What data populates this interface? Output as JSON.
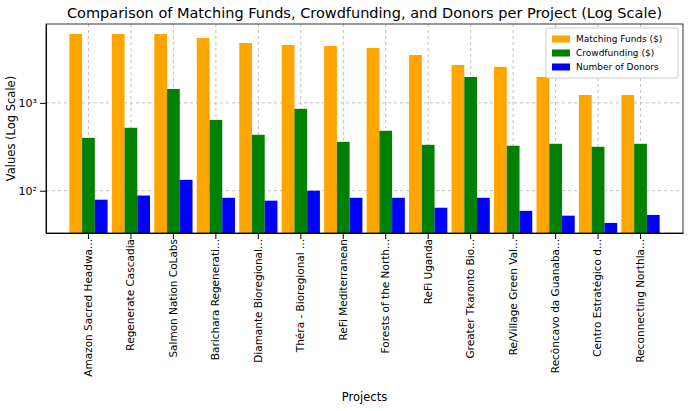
{
  "chart_data": {
    "type": "bar",
    "title": "Comparison of Matching Funds, Crowdfunding, and Donors per Project (Log Scale)",
    "x_label": "Projects",
    "y_label": "Values (Log Scale)",
    "categories": [
      "Amazon Sacred Headwa...",
      "Regenerate Cascadia",
      "Salmon Nation CoLabs",
      "Barichara Regenerati...",
      "Diamante Bioregional...",
      "Théra - Bioregional ...",
      "ReFi Mediterranean",
      "Forests of the North...",
      "ReFi Uganda",
      "Greater Tkaronto Bio...",
      "Re/Village Green Val...",
      "Recôncavo da Guanaba...",
      "Centro Estratégico d...",
      "Reconnecting Northla..."
    ],
    "series": [
      {
        "name": "Matching Funds ($)",
        "color": "#ffa500",
        "values": [
          6080,
          6080,
          6080,
          5480,
          4800,
          4560,
          4440,
          4220,
          3510,
          2700,
          2570,
          1970,
          1230,
          1230
        ]
      },
      {
        "name": "Crowdfunding ($)",
        "color": "#008000",
        "values": [
          400,
          520,
          1440,
          640,
          433,
          855,
          360,
          481,
          333,
          1970,
          325,
          342,
          316,
          342
        ]
      },
      {
        "name": "Number of Donors",
        "color": "#0000ff",
        "values": [
          79,
          88,
          133,
          83,
          77,
          100,
          83,
          83,
          64,
          83,
          59,
          52,
          43,
          53
        ]
      }
    ],
    "log": "y",
    "ylim": [
      33,
      7900
    ],
    "yticks": [
      {
        "value": 100,
        "label": "10²"
      },
      {
        "value": 1000,
        "label": "10³"
      }
    ],
    "grid": true,
    "legend": "upper right"
  }
}
